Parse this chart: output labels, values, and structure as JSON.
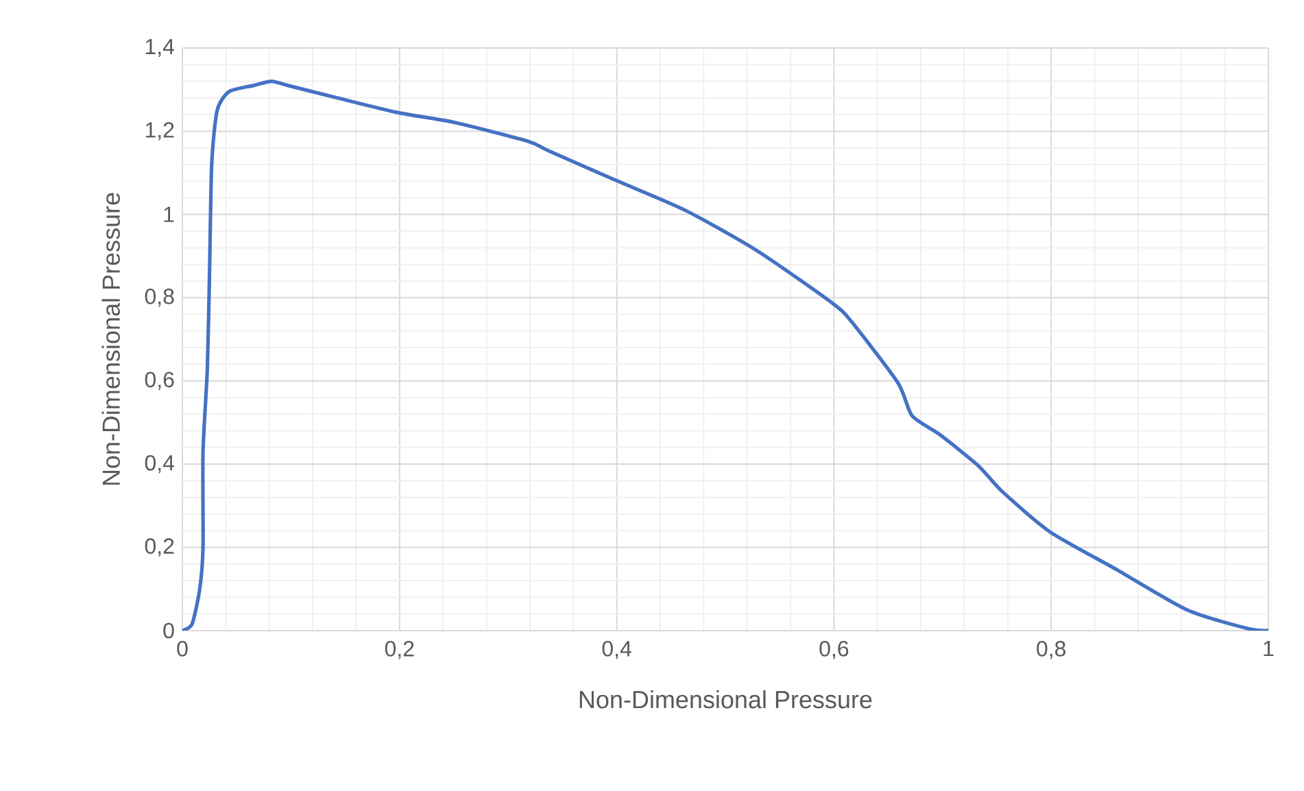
{
  "chart_data": {
    "type": "line",
    "xlabel": "Non-Dimensional Pressure",
    "ylabel": "Non-Dimensional Pressure",
    "x": [
      0,
      0.009,
      0.016,
      0.019,
      0.019,
      0.023,
      0.025,
      0.027,
      0.032,
      0.043,
      0.066,
      0.082,
      0.097,
      0.135,
      0.198,
      0.249,
      0.318,
      0.337,
      0.4,
      0.463,
      0.529,
      0.598,
      0.616,
      0.659,
      0.672,
      0.698,
      0.733,
      0.755,
      0.799,
      0.86,
      0.925,
      0.981,
      1.0
    ],
    "series": [
      {
        "color": "#4472c4",
        "values": [
          0,
          0.016,
          0.1,
          0.2,
          0.43,
          0.63,
          0.86,
          1.12,
          1.25,
          1.295,
          1.31,
          1.32,
          1.31,
          1.285,
          1.245,
          1.222,
          1.176,
          1.153,
          1.081,
          1.01,
          0.913,
          0.788,
          0.743,
          0.595,
          0.516,
          0.47,
          0.396,
          0.334,
          0.237,
          0.147,
          0.05,
          0.005,
          0
        ]
      }
    ],
    "xlim": [
      0,
      1
    ],
    "ylim": [
      0,
      1.4
    ],
    "xticks": [
      0,
      {
        "value": 0.2,
        "label": "0,2"
      },
      {
        "value": 0.4,
        "label": "0,4"
      },
      {
        "value": 0.6,
        "label": "0,6"
      },
      {
        "value": 0.8,
        "label": "0,8"
      },
      1
    ],
    "yticks": [
      0,
      {
        "value": 0.2,
        "label": "0,2"
      },
      {
        "value": 0.4,
        "label": "0,4"
      },
      {
        "value": 0.6,
        "label": "0,6"
      },
      {
        "value": 0.8,
        "label": "0,8"
      },
      1,
      {
        "value": 1.2,
        "label": "1,2"
      },
      {
        "value": 1.4,
        "label": "1,4"
      }
    ],
    "grid": true,
    "marker": "none",
    "line_style": "solid"
  }
}
